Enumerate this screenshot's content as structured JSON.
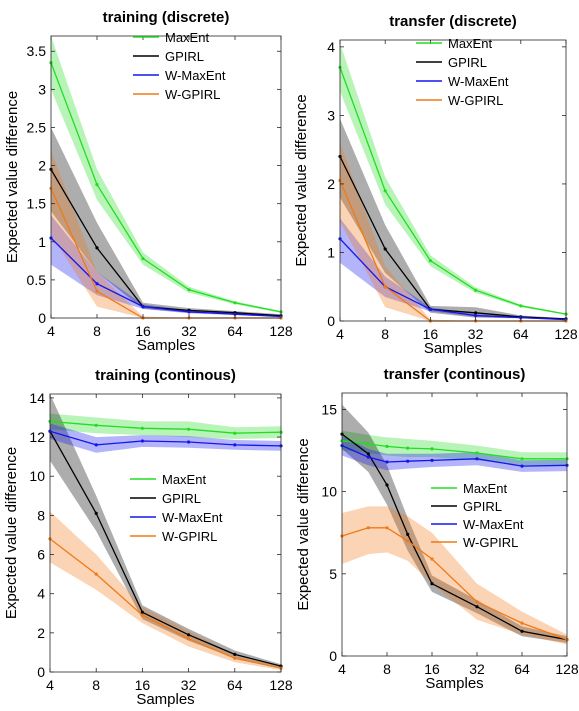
{
  "chart_data": [
    {
      "type": "line",
      "title": "training (discrete)",
      "xlabel": "Samples",
      "ylabel": "Expected value difference",
      "x": [
        4,
        8,
        16,
        32,
        64,
        128
      ],
      "x_scale": "log2",
      "xlim": [
        4,
        128
      ],
      "ylim": [
        0,
        3.7
      ],
      "yticks": [
        0,
        0.5,
        1,
        1.5,
        2,
        2.5,
        3,
        3.5
      ],
      "ytick_labels": [
        "0",
        "0.5",
        "1",
        "1.5",
        "2",
        "2.5",
        "3",
        "3.5"
      ],
      "legend_position": "top-right",
      "series": [
        {
          "name": "MaxEnt",
          "color": "#22dd22",
          "values": [
            3.35,
            1.75,
            0.78,
            0.37,
            0.2,
            0.08
          ],
          "lower": [
            3.0,
            1.55,
            0.7,
            0.33,
            0.18,
            0.07
          ],
          "upper": [
            3.7,
            1.95,
            0.86,
            0.41,
            0.22,
            0.09
          ]
        },
        {
          "name": "GPIRL",
          "color": "#000000",
          "values": [
            1.95,
            0.92,
            0.15,
            0.1,
            0.07,
            0.03
          ],
          "lower": [
            1.4,
            0.6,
            0.12,
            0.07,
            0.05,
            0.02
          ],
          "upper": [
            2.5,
            1.25,
            0.2,
            0.13,
            0.09,
            0.05
          ]
        },
        {
          "name": "W-MaxEnt",
          "color": "#1515ee",
          "values": [
            1.05,
            0.45,
            0.15,
            0.08,
            0.05,
            0.02
          ],
          "lower": [
            0.7,
            0.3,
            0.12,
            0.06,
            0.04,
            0.01
          ],
          "upper": [
            1.35,
            0.6,
            0.18,
            0.1,
            0.07,
            0.03
          ]
        },
        {
          "name": "W-GPIRL",
          "color": "#f07a18",
          "values": [
            1.7,
            0.35,
            0.0,
            0.0,
            0.0,
            0.0
          ],
          "lower": [
            1.1,
            0.15,
            0.0,
            0.0,
            0.0,
            0.0
          ],
          "upper": [
            2.2,
            0.6,
            0.02,
            0.0,
            0.0,
            0.0
          ]
        }
      ]
    },
    {
      "type": "line",
      "title": "transfer (discrete)",
      "xlabel": "Samples",
      "ylabel": "Expected value difference",
      "x": [
        4,
        8,
        16,
        32,
        64,
        128
      ],
      "x_scale": "log2",
      "xlim": [
        4,
        128
      ],
      "ylim": [
        0,
        4.1
      ],
      "yticks": [
        0,
        1,
        2,
        3,
        4
      ],
      "ytick_labels": [
        "0",
        "1",
        "2",
        "3",
        "4"
      ],
      "legend_position": "top-right",
      "series": [
        {
          "name": "MaxEnt",
          "color": "#22dd22",
          "values": [
            3.7,
            1.9,
            0.88,
            0.45,
            0.22,
            0.1
          ],
          "lower": [
            3.35,
            1.7,
            0.8,
            0.41,
            0.2,
            0.09
          ],
          "upper": [
            4.05,
            2.1,
            0.96,
            0.49,
            0.24,
            0.11
          ]
        },
        {
          "name": "GPIRL",
          "color": "#000000",
          "values": [
            2.4,
            1.05,
            0.17,
            0.12,
            0.06,
            0.03
          ],
          "lower": [
            1.8,
            0.7,
            0.12,
            0.05,
            0.04,
            0.02
          ],
          "upper": [
            2.95,
            1.4,
            0.22,
            0.2,
            0.08,
            0.04
          ]
        },
        {
          "name": "W-MaxEnt",
          "color": "#1515ee",
          "values": [
            1.2,
            0.5,
            0.17,
            0.08,
            0.05,
            0.02
          ],
          "lower": [
            0.85,
            0.35,
            0.14,
            0.06,
            0.04,
            0.01
          ],
          "upper": [
            1.5,
            0.65,
            0.2,
            0.1,
            0.06,
            0.03
          ]
        },
        {
          "name": "W-GPIRL",
          "color": "#f07a18",
          "values": [
            2.05,
            0.5,
            0.0,
            0.0,
            0.0,
            0.0
          ],
          "lower": [
            1.45,
            0.2,
            0.0,
            0.0,
            0.0,
            0.0
          ],
          "upper": [
            2.6,
            0.8,
            0.02,
            0.0,
            0.0,
            0.0
          ]
        }
      ]
    },
    {
      "type": "line",
      "title": "training (continous)",
      "xlabel": "Samples",
      "ylabel": "Expected value difference",
      "x": [
        4,
        8,
        16,
        32,
        64,
        128
      ],
      "x_scale": "log2",
      "xlim": [
        4,
        128
      ],
      "ylim": [
        0,
        14.2
      ],
      "yticks": [
        0,
        2,
        4,
        6,
        8,
        10,
        12,
        14
      ],
      "ytick_labels": [
        "0",
        "2",
        "4",
        "6",
        "8",
        "10",
        "12",
        "14"
      ],
      "legend_position": "right",
      "series": [
        {
          "name": "MaxEnt",
          "color": "#22dd22",
          "values": [
            12.8,
            12.6,
            12.45,
            12.4,
            12.2,
            12.25
          ],
          "lower": [
            12.4,
            12.2,
            12.1,
            12.0,
            11.9,
            11.95
          ],
          "upper": [
            13.2,
            13.0,
            12.8,
            12.8,
            12.5,
            12.55
          ]
        },
        {
          "name": "GPIRL",
          "color": "#000000",
          "values": [
            12.3,
            8.1,
            3.05,
            1.9,
            0.9,
            0.3
          ],
          "lower": [
            10.8,
            7.2,
            2.7,
            1.6,
            0.7,
            0.2
          ],
          "upper": [
            14.2,
            9.0,
            3.4,
            2.2,
            1.1,
            0.4
          ]
        },
        {
          "name": "W-MaxEnt",
          "color": "#1515ee",
          "values": [
            12.3,
            11.6,
            11.8,
            11.75,
            11.6,
            11.55
          ],
          "lower": [
            11.9,
            11.2,
            11.5,
            11.45,
            11.35,
            11.3
          ],
          "upper": [
            12.7,
            12.0,
            12.1,
            12.05,
            11.85,
            11.8
          ]
        },
        {
          "name": "W-GPIRL",
          "color": "#f07a18",
          "values": [
            6.8,
            5.0,
            2.9,
            1.7,
            0.7,
            0.2
          ],
          "lower": [
            5.6,
            4.2,
            2.5,
            1.3,
            0.5,
            0.1
          ],
          "upper": [
            8.2,
            6.0,
            3.3,
            2.1,
            0.9,
            0.3
          ]
        }
      ]
    },
    {
      "type": "line",
      "title": "transfer (continous)",
      "xlabel": "Samples",
      "ylabel": "Expected value difference",
      "x": [
        4,
        6,
        8,
        11,
        16,
        32,
        64,
        128
      ],
      "x_scale": "log2",
      "xlim": [
        4,
        128
      ],
      "ylim": [
        0,
        16
      ],
      "yticks": [
        0,
        5,
        10,
        15
      ],
      "ytick_labels": [
        "0",
        "5",
        "10",
        "15"
      ],
      "xtick_values": [
        4,
        8,
        16,
        32,
        64,
        128
      ],
      "legend_position": "right",
      "series": [
        {
          "name": "MaxEnt",
          "color": "#22dd22",
          "values": [
            13.1,
            12.9,
            12.75,
            12.65,
            12.6,
            12.35,
            12.0,
            12.0
          ],
          "lower": [
            12.5,
            12.35,
            12.2,
            12.1,
            12.1,
            11.9,
            11.6,
            11.6
          ],
          "upper": [
            13.7,
            13.45,
            13.3,
            13.2,
            13.1,
            12.8,
            12.4,
            12.4
          ]
        },
        {
          "name": "GPIRL",
          "color": "#000000",
          "values": [
            13.5,
            12.3,
            10.4,
            7.4,
            4.4,
            3.0,
            1.5,
            1.0
          ],
          "lower": [
            12.6,
            11.2,
            9.2,
            6.4,
            3.9,
            2.6,
            1.2,
            0.8
          ],
          "upper": [
            15.3,
            13.6,
            11.6,
            8.4,
            4.9,
            3.4,
            1.8,
            1.2
          ]
        },
        {
          "name": "W-MaxEnt",
          "color": "#1515ee",
          "values": [
            12.8,
            12.1,
            11.8,
            11.85,
            11.9,
            12.0,
            11.55,
            11.6
          ],
          "lower": [
            12.2,
            11.6,
            11.3,
            11.4,
            11.5,
            11.6,
            11.2,
            11.25
          ],
          "upper": [
            13.4,
            12.6,
            12.3,
            12.3,
            12.3,
            12.4,
            11.9,
            11.95
          ]
        },
        {
          "name": "W-GPIRL",
          "color": "#f07a18",
          "values": [
            7.3,
            7.8,
            7.8,
            7.0,
            5.9,
            3.3,
            2.0,
            1.0
          ],
          "lower": [
            5.6,
            6.2,
            6.3,
            5.8,
            4.4,
            2.2,
            1.3,
            0.7
          ],
          "upper": [
            8.7,
            9.1,
            9.1,
            8.5,
            7.5,
            4.4,
            2.7,
            1.3
          ]
        }
      ]
    }
  ]
}
